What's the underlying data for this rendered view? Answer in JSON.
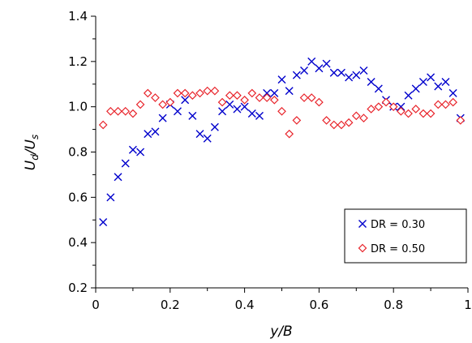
{
  "chart_data": {
    "type": "scatter",
    "xlabel": "y/B",
    "ylabel": {
      "main": "U",
      "sub1": "d",
      "slash": "/U",
      "sub2": "s"
    },
    "xlim": [
      0,
      1
    ],
    "ylim": [
      0.2,
      1.4
    ],
    "xticks": [
      0,
      0.2,
      0.4,
      0.6,
      0.8,
      1
    ],
    "yticks": [
      0.2,
      0.4,
      0.6,
      0.8,
      1.0,
      1.2,
      1.4
    ],
    "xtick_labels": [
      "0",
      "0.2",
      "0.4",
      "0.6",
      "0.8",
      "1"
    ],
    "ytick_labels": [
      "0.2",
      "0.4",
      "0.6",
      "0.8",
      "1.0",
      "1.2",
      "1.4"
    ],
    "grid": false,
    "legend_position": "bottom-right",
    "series": [
      {
        "name": "DR = 0.30",
        "marker": "x",
        "color": "#0000CC",
        "x": [
          0.02,
          0.04,
          0.06,
          0.08,
          0.1,
          0.12,
          0.14,
          0.16,
          0.18,
          0.2,
          0.22,
          0.24,
          0.26,
          0.28,
          0.3,
          0.32,
          0.34,
          0.36,
          0.38,
          0.4,
          0.42,
          0.44,
          0.46,
          0.48,
          0.5,
          0.52,
          0.54,
          0.56,
          0.58,
          0.6,
          0.62,
          0.64,
          0.66,
          0.68,
          0.7,
          0.72,
          0.74,
          0.76,
          0.78,
          0.8,
          0.82,
          0.84,
          0.86,
          0.88,
          0.9,
          0.92,
          0.94,
          0.96,
          0.98
        ],
        "y": [
          0.49,
          0.6,
          0.69,
          0.75,
          0.81,
          0.8,
          0.88,
          0.89,
          0.95,
          1.01,
          0.98,
          1.03,
          0.96,
          0.88,
          0.86,
          0.91,
          0.98,
          1.01,
          0.99,
          1.0,
          0.97,
          0.96,
          1.06,
          1.06,
          1.12,
          1.07,
          1.14,
          1.16,
          1.2,
          1.17,
          1.19,
          1.15,
          1.15,
          1.13,
          1.14,
          1.16,
          1.11,
          1.08,
          1.03,
          1.0,
          1.0,
          1.05,
          1.08,
          1.11,
          1.13,
          1.09,
          1.11,
          1.06,
          0.95
        ]
      },
      {
        "name": "DR = 0.50",
        "marker": "diamond",
        "color": "#E8232A",
        "x": [
          0.02,
          0.04,
          0.06,
          0.08,
          0.1,
          0.12,
          0.14,
          0.16,
          0.18,
          0.2,
          0.22,
          0.24,
          0.26,
          0.28,
          0.3,
          0.32,
          0.34,
          0.36,
          0.38,
          0.4,
          0.42,
          0.44,
          0.46,
          0.48,
          0.5,
          0.52,
          0.54,
          0.56,
          0.58,
          0.6,
          0.62,
          0.64,
          0.66,
          0.68,
          0.7,
          0.72,
          0.74,
          0.76,
          0.78,
          0.8,
          0.82,
          0.84,
          0.86,
          0.88,
          0.9,
          0.92,
          0.94,
          0.96,
          0.98
        ],
        "y": [
          0.92,
          0.98,
          0.98,
          0.98,
          0.97,
          1.01,
          1.06,
          1.04,
          1.01,
          1.02,
          1.06,
          1.06,
          1.05,
          1.06,
          1.07,
          1.07,
          1.02,
          1.05,
          1.05,
          1.03,
          1.06,
          1.04,
          1.04,
          1.03,
          0.98,
          0.88,
          0.94,
          1.04,
          1.04,
          1.02,
          0.94,
          0.92,
          0.92,
          0.93,
          0.96,
          0.95,
          0.99,
          1.0,
          1.02,
          1.0,
          0.98,
          0.97,
          0.99,
          0.97,
          0.97,
          1.01,
          1.01,
          1.02,
          0.94
        ]
      }
    ]
  }
}
